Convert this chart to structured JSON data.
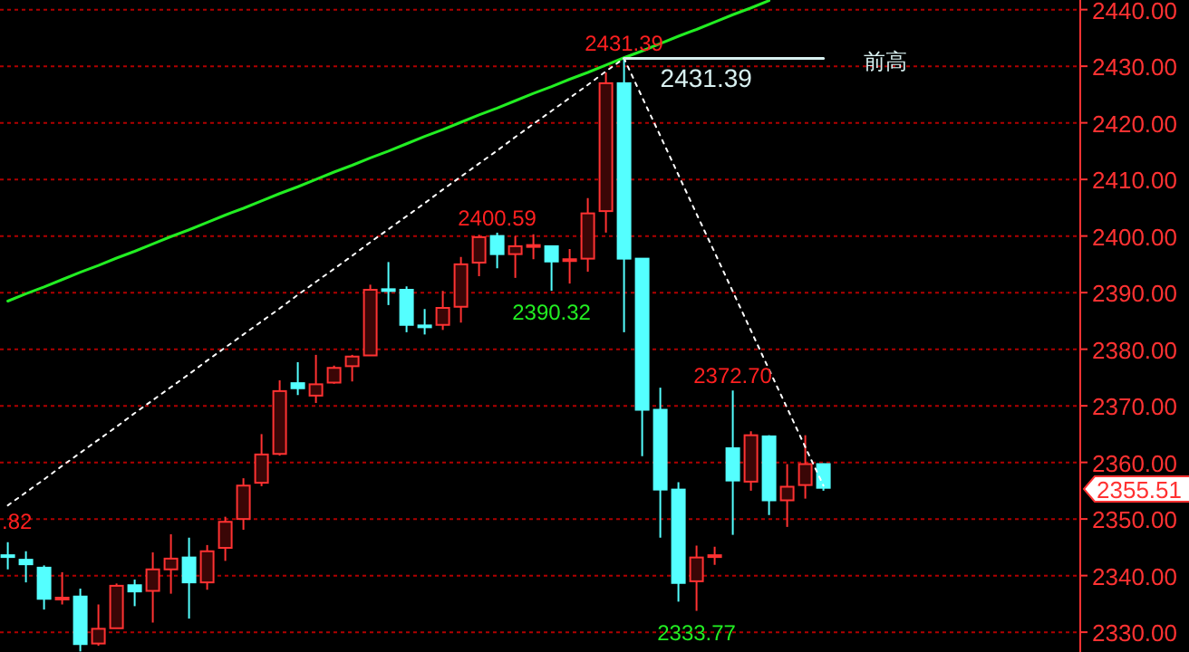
{
  "chart_data": {
    "type": "candlestick",
    "categories": [
      null,
      null,
      null,
      null,
      null,
      null,
      null,
      null,
      null,
      null,
      null,
      null,
      null,
      null,
      null,
      null,
      null,
      null,
      null,
      null,
      null,
      null,
      null,
      null,
      null,
      null,
      null,
      null,
      null,
      null,
      null,
      null,
      null,
      null,
      null,
      null,
      null,
      null,
      null,
      null,
      null,
      null,
      null,
      null,
      null,
      null
    ],
    "ohlc": [
      [
        2343.6,
        2345.9,
        2341.1,
        2343.4
      ],
      [
        2342.8,
        2344.3,
        2338.8,
        2342.0
      ],
      [
        2341.4,
        2341.8,
        2334.0,
        2335.9
      ],
      [
        2335.9,
        2340.6,
        2334.9,
        2336.1
      ],
      [
        2336.3,
        2337.7,
        2326.6,
        2327.9
      ],
      [
        2328.0,
        2334.9,
        2327.6,
        2330.6
      ],
      [
        2330.7,
        2338.6,
        2330.7,
        2338.2
      ],
      [
        2338.3,
        2339.3,
        2334.6,
        2337.2
      ],
      [
        2337.3,
        2344.1,
        2331.7,
        2341.1
      ],
      [
        2341.1,
        2347.3,
        2336.8,
        2343.0
      ],
      [
        2343.2,
        2346.7,
        2332.4,
        2338.8
      ],
      [
        2338.8,
        2345.4,
        2337.5,
        2344.3
      ],
      [
        2344.9,
        2350.4,
        2342.6,
        2349.5
      ],
      [
        2350.0,
        2357.2,
        2348.1,
        2355.9
      ],
      [
        2356.4,
        2365.0,
        2355.8,
        2361.4
      ],
      [
        2361.5,
        2374.5,
        2361.2,
        2372.6
      ],
      [
        2374.0,
        2377.7,
        2371.9,
        2373.1
      ],
      [
        2371.8,
        2379.0,
        2370.5,
        2373.8
      ],
      [
        2374.1,
        2377.1,
        2373.9,
        2376.7
      ],
      [
        2377.0,
        2379.0,
        2374.3,
        2378.7
      ],
      [
        2378.9,
        2391.4,
        2378.9,
        2390.5
      ],
      [
        2390.6,
        2395.4,
        2387.8,
        2390.4
      ],
      [
        2390.5,
        2391.1,
        2383.0,
        2384.3
      ],
      [
        2384.2,
        2387.1,
        2382.6,
        2384.0
      ],
      [
        2384.3,
        2390.3,
        2383.4,
        2387.3
      ],
      [
        2387.5,
        2396.3,
        2384.7,
        2395.0
      ],
      [
        2395.3,
        2400.2,
        2392.9,
        2399.8
      ],
      [
        2400.0,
        2400.59,
        2394.3,
        2396.8
      ],
      [
        2396.8,
        2400.0,
        2392.6,
        2398.2
      ],
      [
        2398.2,
        2400.3,
        2395.9,
        2398.4
      ],
      [
        2398.2,
        2398.2,
        2390.32,
        2395.5
      ],
      [
        2395.7,
        2397.7,
        2391.6,
        2395.9
      ],
      [
        2396.0,
        2406.7,
        2393.7,
        2404.0
      ],
      [
        2404.4,
        2428.9,
        2400.6,
        2427.0
      ],
      [
        2427.0,
        2431.39,
        2383.0,
        2396.0
      ],
      [
        2396.0,
        2396.0,
        2361.1,
        2369.3
      ],
      [
        2369.3,
        2373.2,
        2346.7,
        2355.2
      ],
      [
        2355.2,
        2356.5,
        2335.4,
        2338.7
      ],
      [
        2339.0,
        2345.3,
        2333.77,
        2343.2
      ],
      [
        2343.4,
        2345.1,
        2341.9,
        2343.6
      ],
      [
        2362.5,
        2372.7,
        2347.2,
        2356.8
      ],
      [
        2356.6,
        2365.5,
        2355.0,
        2364.8
      ],
      [
        2364.6,
        2364.8,
        2350.7,
        2353.3
      ],
      [
        2353.3,
        2359.7,
        2348.6,
        2355.7
      ],
      [
        2356.0,
        2364.8,
        2353.6,
        2359.7
      ],
      [
        2359.7,
        2359.8,
        2355.0,
        2355.51
      ]
    ],
    "colors": [
      "#54ffff",
      "#54ffff",
      "#54ffff",
      "#ff3232",
      "#54ffff",
      "#ff3232",
      "#ff3232",
      "#54ffff",
      "#ff3232",
      "#ff3232",
      "#54ffff",
      "#ff3232",
      "#ff3232",
      "#ff3232",
      "#ff3232",
      "#ff3232",
      "#54ffff",
      "#ff3232",
      "#ff3232",
      "#ff3232",
      "#ff3232",
      "#54ffff",
      "#54ffff",
      "#54ffff",
      "#ff3232",
      "#ff3232",
      "#ff3232",
      "#54ffff",
      "#ff3232",
      "#ff3232",
      "#54ffff",
      "#ff3232",
      "#ff3232",
      "#ff3232",
      "#54ffff",
      "#54ffff",
      "#54ffff",
      "#54ffff",
      "#ff3232",
      "#ff3232",
      "#54ffff",
      "#ff3232",
      "#54ffff",
      "#ff3232",
      "#ff3232",
      "#54ffff"
    ],
    "series": [
      {
        "type": "line",
        "color": "#22ee22",
        "line_style": "solid",
        "values": [
          2388.5,
          2389.8,
          2391.0,
          2392.3,
          2393.6,
          2394.8,
          2396.1,
          2397.3,
          2398.6,
          2399.9,
          2401.1,
          2402.4,
          2403.7,
          2404.9,
          2406.2,
          2407.5,
          2408.7,
          2410.0,
          2411.3,
          2412.5,
          2413.8,
          2415.0,
          2416.3,
          2417.6,
          2418.8,
          2420.1,
          2421.4,
          2422.6,
          2423.9,
          2425.2,
          2426.4,
          2427.7,
          2428.9,
          2430.2,
          2431.5,
          2432.7,
          2434.0,
          2435.3,
          2436.5,
          2437.8,
          2439.1,
          2440.3,
          2441.6,
          null,
          null,
          null
        ]
      },
      {
        "type": "line",
        "color": "#ffffff",
        "line_style": "dotted",
        "values": [
          2352.4,
          2354.7,
          2357.0,
          2359.4,
          2361.7,
          2364.0,
          2366.3,
          2368.7,
          2371.0,
          2373.3,
          2375.6,
          2378.0,
          2380.3,
          2382.6,
          2384.9,
          2387.2,
          2389.6,
          2391.9,
          2394.2,
          2396.5,
          2398.9,
          2401.2,
          2403.5,
          2405.8,
          2408.2,
          2410.5,
          2412.8,
          2415.1,
          2417.5,
          2419.8,
          2422.1,
          2424.4,
          2426.7,
          2429.1,
          2431.39,
          2424.5,
          2417.7,
          2410.8,
          2403.9,
          2397.1,
          2390.2,
          2383.3,
          2376.4,
          2369.6,
          2362.7,
          2355.9
        ]
      },
      {
        "type": "line",
        "name": "前高",
        "color": "#d8f0f0",
        "line_style": "solid",
        "values": [
          null,
          null,
          null,
          null,
          null,
          null,
          null,
          null,
          null,
          null,
          null,
          null,
          null,
          null,
          null,
          null,
          null,
          null,
          null,
          null,
          null,
          null,
          null,
          null,
          null,
          null,
          null,
          null,
          null,
          null,
          null,
          null,
          null,
          null,
          2431.39,
          2431.39,
          2431.39,
          2431.39,
          2431.39,
          2431.39,
          2431.39,
          2431.39,
          2431.39,
          2431.39,
          2431.39,
          2431.39
        ],
        "value_labels": [
          null,
          null,
          null,
          null,
          null,
          null,
          null,
          null,
          null,
          null,
          null,
          null,
          null,
          null,
          null,
          null,
          null,
          null,
          null,
          null,
          null,
          null,
          null,
          null,
          null,
          null,
          null,
          null,
          null,
          null,
          null,
          null,
          null,
          null,
          "2431.39",
          null,
          null,
          null,
          null,
          null,
          null,
          null,
          null,
          null,
          null,
          null
        ]
      }
    ],
    "ylim": [
      2326.5,
      2441.7
    ],
    "yticks": [
      {
        "value": 2330,
        "label": "2330.00"
      },
      {
        "value": 2340,
        "label": "2340.00"
      },
      {
        "value": 2350,
        "label": "2350.00"
      },
      {
        "value": 2360,
        "label": "2360.00"
      },
      {
        "value": 2370,
        "label": "2370.00"
      },
      {
        "value": 2380,
        "label": "2380.00"
      },
      {
        "value": 2390,
        "label": "2390.00"
      },
      {
        "value": 2400,
        "label": "2400.00"
      },
      {
        "value": 2410,
        "label": "2410.00"
      },
      {
        "value": 2420,
        "label": "2420.00"
      },
      {
        "value": 2430,
        "label": "2430.00"
      },
      {
        "value": 2440,
        "label": "2440.00"
      }
    ],
    "tick_labels": "y",
    "grid": "y",
    "annotations": [
      {
        "text": "2431.39",
        "y": 2431.39
      },
      {
        "text": "2400.59",
        "y": 2400.59
      },
      {
        "text": "2390.32",
        "y": 2390.32
      },
      {
        "text": "2372.70",
        "y": 2372.7
      },
      {
        "text": "2333.77",
        "y": 2333.77
      },
      ".82",
      "2355.51"
    ]
  }
}
